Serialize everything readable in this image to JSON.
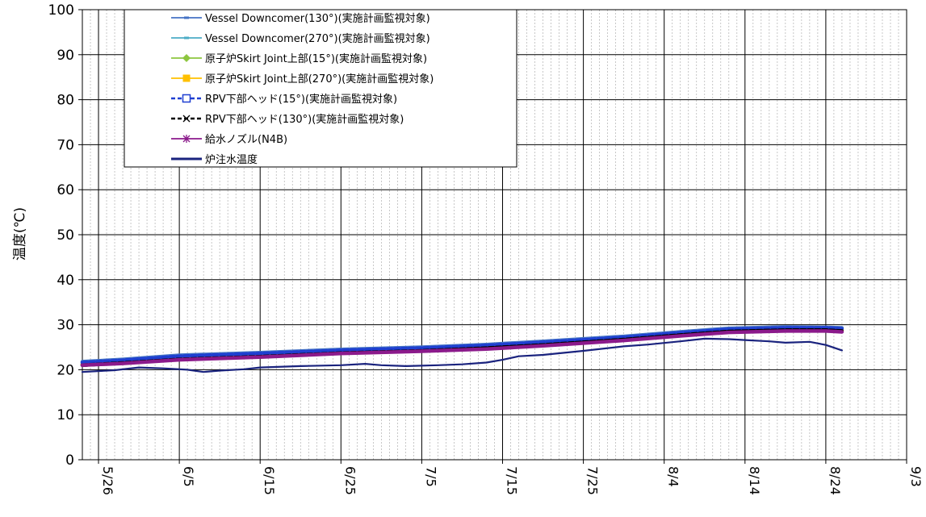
{
  "chart_data": {
    "type": "line",
    "title": "",
    "xlabel": "",
    "ylabel": "温度(℃)",
    "ylim": [
      0,
      100
    ],
    "y_ticks": [
      "0",
      "10",
      "20",
      "30",
      "40",
      "50",
      "60",
      "70",
      "80",
      "90",
      "100"
    ],
    "x_tick_labels": [
      "5/26",
      "6/5",
      "6/15",
      "6/25",
      "7/5",
      "7/15",
      "7/25",
      "8/4",
      "8/14",
      "8/24",
      "9/3"
    ],
    "x_tick_positions_days": [
      0,
      10,
      20,
      30,
      40,
      50,
      60,
      70,
      80,
      90,
      100
    ],
    "xlim_days": [
      -2,
      100
    ],
    "grid": true,
    "legend_position": "top-left inside plot",
    "series": [
      {
        "name": "Vessel Downcomer(130°)(実施計画監視対象)",
        "color": "#4472c4",
        "marker": "dash",
        "line_style": "solid",
        "x": [
          -2,
          3,
          10,
          20,
          30,
          40,
          48,
          55,
          65,
          72,
          78,
          85,
          90,
          92
        ],
        "y": [
          21.8,
          22.3,
          23.2,
          23.8,
          24.5,
          25.0,
          25.6,
          26.3,
          27.4,
          28.4,
          29.2,
          29.5,
          29.4,
          29.3
        ]
      },
      {
        "name": "Vessel Downcomer(270°)(実施計画監視対象)",
        "color": "#4bacc6",
        "marker": "dash",
        "line_style": "solid",
        "x": [
          -2,
          3,
          10,
          20,
          30,
          40,
          48,
          55,
          65,
          72,
          78,
          85,
          90,
          92
        ],
        "y": [
          21.3,
          21.8,
          22.6,
          23.2,
          24.0,
          24.5,
          25.1,
          25.8,
          27.0,
          28.0,
          28.8,
          29.1,
          29.1,
          28.9
        ]
      },
      {
        "name": "原子炉Skirt Joint上部(15°)(実施計画監視対象)",
        "color": "#8dc63f",
        "marker": "diamond",
        "line_style": "solid",
        "x": [
          -2,
          3,
          10,
          20,
          30,
          40,
          48,
          55,
          65,
          72,
          78,
          85,
          90,
          92
        ],
        "y": [
          21.1,
          21.6,
          22.4,
          23.0,
          23.8,
          24.3,
          24.9,
          25.6,
          26.8,
          27.8,
          28.6,
          28.9,
          28.9,
          28.7
        ]
      },
      {
        "name": "原子炉Skirt Joint上部(270°)(実施計画監視対象)",
        "color": "#ffc000",
        "marker": "square",
        "line_style": "solid",
        "x": [
          -2,
          3,
          10,
          20,
          30,
          40,
          48,
          55,
          65,
          72,
          78,
          85,
          90,
          92
        ],
        "y": [
          21.2,
          21.7,
          22.5,
          23.1,
          23.9,
          24.4,
          25.0,
          25.7,
          26.9,
          27.9,
          28.7,
          29.0,
          29.0,
          28.8
        ]
      },
      {
        "name": "RPV下部ヘッド(15°)(実施計画監視対象)",
        "color": "#1f3fd1",
        "marker": "square-open",
        "line_style": "dashed",
        "x": [
          -2,
          3,
          10,
          20,
          30,
          40,
          48,
          55,
          65,
          72,
          78,
          85,
          90,
          92
        ],
        "y": [
          21.6,
          22.1,
          23.0,
          23.6,
          24.3,
          24.8,
          25.4,
          26.1,
          27.2,
          28.2,
          29.0,
          29.3,
          29.3,
          29.1
        ]
      },
      {
        "name": "RPV下部ヘッド(130°)(実施計画監視対象)",
        "color": "#000000",
        "marker": "x",
        "line_style": "dashed",
        "x": [
          -2,
          3,
          10,
          20,
          30,
          40,
          48,
          55,
          65,
          72,
          78,
          85,
          90,
          92
        ],
        "y": [
          21.0,
          21.5,
          22.3,
          22.9,
          23.7,
          24.2,
          24.8,
          25.5,
          26.7,
          27.7,
          28.5,
          28.8,
          28.8,
          28.6
        ]
      },
      {
        "name": "給水ノズル(N4B)",
        "color": "#8b1a8b",
        "marker": "asterisk",
        "line_style": "solid",
        "x": [
          -2,
          3,
          10,
          20,
          30,
          40,
          48,
          55,
          65,
          72,
          78,
          85,
          90,
          92
        ],
        "y": [
          21.0,
          21.4,
          22.2,
          22.8,
          23.6,
          24.1,
          24.6,
          25.3,
          26.5,
          27.5,
          28.3,
          28.6,
          28.6,
          28.4
        ]
      },
      {
        "name": "炉注水温度",
        "color": "#1a237e",
        "marker": "none",
        "line_style": "solid",
        "x": [
          -2,
          2,
          5,
          8,
          11,
          13,
          15,
          18,
          20,
          25,
          30,
          33,
          35,
          38,
          42,
          45,
          48,
          50,
          52,
          55,
          60,
          65,
          68,
          72,
          75,
          78,
          80,
          83,
          85,
          88,
          90,
          92
        ],
        "y": [
          19.5,
          19.9,
          20.5,
          20.3,
          20.0,
          19.5,
          19.8,
          20.1,
          20.5,
          20.8,
          21.0,
          21.3,
          21.0,
          20.8,
          21.0,
          21.2,
          21.6,
          22.2,
          23.0,
          23.3,
          24.2,
          25.2,
          25.6,
          26.3,
          26.9,
          26.8,
          26.6,
          26.3,
          26.0,
          26.2,
          25.5,
          24.3
        ]
      }
    ]
  }
}
